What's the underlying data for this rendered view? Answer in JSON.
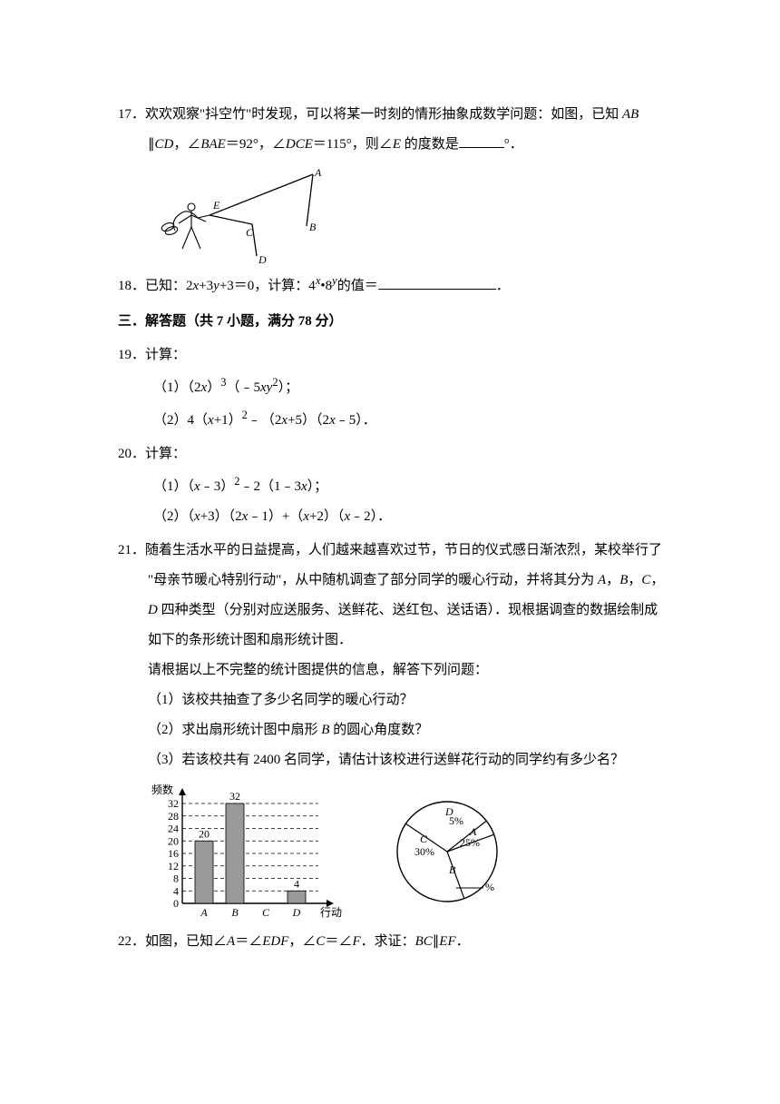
{
  "q17": {
    "num": "17．",
    "line1_a": "欢欢观察\"抖空竹\"时发现，可以将某一时刻的情形抽象成数学问题：如图，已知 ",
    "ab": "AB",
    "line2_a": "∥",
    "cd": "CD",
    "line2_b": "，∠",
    "bae": "BAE",
    "line2_c": "＝92°，∠",
    "dce": "DCE",
    "line2_d": "＝115°，则∠",
    "e": "E",
    "line2_e": " 的度数是",
    "line2_f": "°．",
    "figure": {
      "labels": {
        "A": "A",
        "B": "B",
        "C": "C",
        "D": "D",
        "E": "E"
      },
      "stroke": "#000000",
      "bg": "#ffffff"
    }
  },
  "q18": {
    "num": "18．",
    "text_a": "已知：2",
    "x": "x",
    "text_b": "+3",
    "y": "y",
    "text_c": "+3＝0，计算：4",
    "text_d": "•8",
    "text_e": "的值＝",
    "text_f": "．"
  },
  "section3": "三．解答题（共 7 小题，满分 78 分）",
  "q19": {
    "num": "19．",
    "title": "计算：",
    "sub1_a": "（1）（2",
    "sub1_b": "）",
    "sub1_c": "（﹣5",
    "sub1_d": "）；",
    "sub2_a": "（2）4（",
    "sub2_b": "+1）",
    "sub2_c": "﹣（2",
    "sub2_d": "+5）（2",
    "sub2_e": "﹣5）．",
    "x": "x",
    "y": "y"
  },
  "q20": {
    "num": "20．",
    "title": "计算：",
    "sub1_a": "（1）（",
    "sub1_b": "﹣3）",
    "sub1_c": "﹣2（1﹣3",
    "sub1_d": "）；",
    "sub2_a": "（2）（",
    "sub2_b": "+3）（2",
    "sub2_c": "﹣1）+（",
    "sub2_d": "+2）（",
    "sub2_e": "﹣2）．",
    "x": "x"
  },
  "q21": {
    "num": "21．",
    "p1": "随着生活水平的日益提高，人们越来越喜欢过节，节日的仪式感日渐浓烈，某校举行了",
    "p2a": "\"母亲节暖心特别行动\"，从中随机调查了部分同学的暖心行动，并将其分为 ",
    "p2b": "，",
    "p2c": "，",
    "p2d": "，",
    "p3a": " 四种类型（分别对应送服务、送鲜花、送红包、送话语）．现根据调查的数据绘制成",
    "p4": "如下的条形统计图和扇形统计图．",
    "p5": "请根据以上不完整的统计图提供的信息，解答下列问题：",
    "sub1": "（1）该校共抽查了多少名同学的暖心行动？",
    "sub2_a": "（2）求出扇形统计图中扇形 ",
    "sub2_b": " 的圆心角度数？",
    "sub3": "（3）若该校共有 2400 名同学，请估计该校进行送鲜花行动的同学约有多少名？",
    "A": "A",
    "B": "B",
    "C": "C",
    "D": "D",
    "bar_chart": {
      "type": "bar",
      "ylabel": "频数",
      "xlabel": "行动",
      "categories": [
        "A",
        "B",
        "C",
        "D"
      ],
      "values": [
        20,
        32,
        0,
        4
      ],
      "value_labels": [
        "20",
        "32",
        "",
        "4"
      ],
      "ylim": [
        0,
        32
      ],
      "yticks": [
        0,
        4,
        8,
        12,
        16,
        20,
        24,
        28,
        32
      ],
      "bar_color": "#999999",
      "grid_color": "#000000",
      "grid_dash": "4,3",
      "axis_color": "#000000",
      "bg": "#ffffff"
    },
    "pie_chart": {
      "type": "pie",
      "slices": [
        {
          "label": "A",
          "value_label": "25%",
          "start": 70,
          "end": 160
        },
        {
          "label": "B",
          "value_label": "%",
          "start": 160,
          "end": 304
        },
        {
          "label": "C",
          "value_label": "30%",
          "start": 304,
          "end": 412
        },
        {
          "label": "D",
          "value_label": "5%",
          "start": 412,
          "end": 430
        }
      ],
      "stroke": "#000000",
      "fill": "#ffffff",
      "blank_line_width": 30
    }
  },
  "q22": {
    "num": "22．",
    "text_a": "如图，已知∠",
    "a": "A",
    "text_b": "＝∠",
    "edf": "EDF",
    "text_c": "，∠",
    "c": "C",
    "text_d": "＝∠",
    "f": "F",
    "text_e": "．求证：",
    "bc": "BC",
    "text_f": "∥",
    "ef": "EF",
    "text_g": "．"
  }
}
